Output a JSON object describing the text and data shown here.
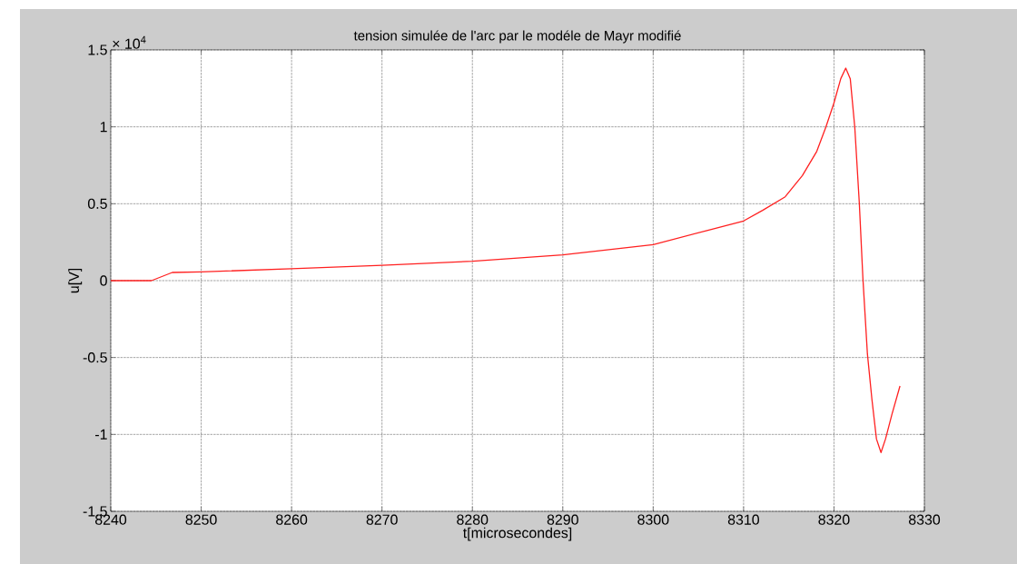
{
  "chart_data": {
    "type": "line",
    "title": "tension simulée de l'arc par le modéle de Mayr modifié",
    "xlabel": "t[microsecondes]",
    "ylabel": "u[V]",
    "annotations": [
      "× 10$^{4}$"
    ],
    "xlim": [
      8240,
      8330
    ],
    "ylim": [
      -1.5,
      1.5
    ],
    "xticks": [
      8240,
      8250,
      8260,
      8270,
      8280,
      8290,
      8300,
      8310,
      8320,
      8330
    ],
    "yticks": [
      -1.5,
      -1,
      -0.5,
      0,
      0.5,
      1,
      1.5
    ],
    "grid": true,
    "line_style": "solid",
    "marker": "none",
    "series": [
      {
        "color": "#ff2020",
        "x": [
          8240,
          8244.5,
          8246.8,
          8250,
          8260,
          8270,
          8280,
          8290,
          8300,
          8310,
          8312.1,
          8314.6,
          8316.5,
          8318.1,
          8319.1,
          8320.0,
          8320.75,
          8321.3,
          8321.8,
          8322.3,
          8322.8,
          8323.2,
          8323.7,
          8324.2,
          8324.7,
          8325.2,
          8325.7,
          8326.4,
          8327.3
        ],
        "values": [
          0,
          0,
          0.053,
          0.057,
          0.077,
          0.1,
          0.126,
          0.167,
          0.234,
          0.388,
          0.457,
          0.545,
          0.683,
          0.841,
          0.998,
          1.156,
          1.313,
          1.382,
          1.313,
          0.998,
          0.506,
          0.014,
          -0.478,
          -0.774,
          -1.03,
          -1.118,
          -1.03,
          -0.872,
          -0.685
        ]
      }
    ]
  }
}
